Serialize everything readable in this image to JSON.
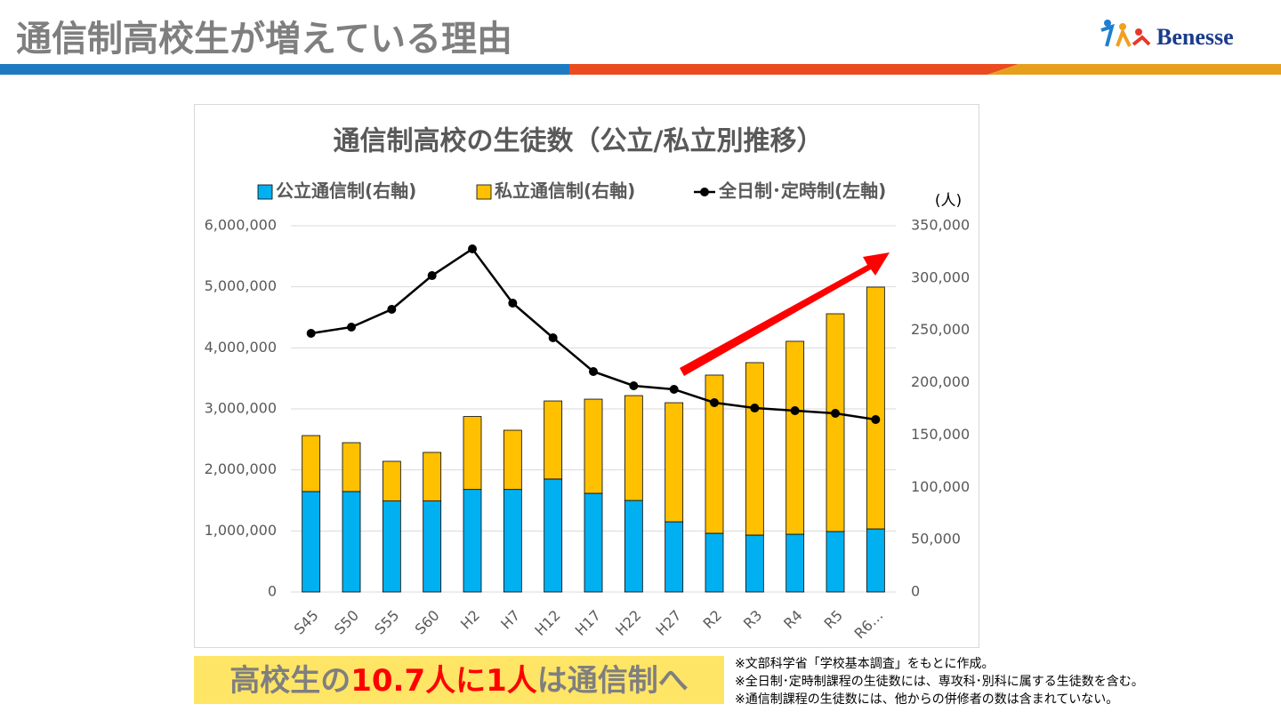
{
  "header": {
    "title": "通信制高校生が増えている理由",
    "logo": "Benesse"
  },
  "chart_data": {
    "type": "bar-line",
    "title": "通信制高校の生徒数（公立/私立別推移）",
    "y2label": "(人)",
    "categories": [
      "S45",
      "S50",
      "S55",
      "S60",
      "H2",
      "H7",
      "H12",
      "H17",
      "H22",
      "H27",
      "R2",
      "R3",
      "R4",
      "R5",
      "R6…"
    ],
    "series": [
      {
        "name": "公立通信制(右軸)",
        "color": "#00b0f0",
        "type": "bar",
        "axis": "y2",
        "values": [
          96000,
          96000,
          87000,
          87000,
          98000,
          98000,
          108000,
          94300,
          87500,
          67100,
          56100,
          54400,
          55200,
          57800,
          60300
        ]
      },
      {
        "name": "私立通信制(右軸)",
        "color": "#ffc000",
        "type": "bar",
        "axis": "y2",
        "values": [
          53500,
          46700,
          37900,
          46400,
          69700,
          56600,
          74600,
          90000,
          100200,
          113800,
          151200,
          164800,
          184400,
          208100,
          231100
        ]
      },
      {
        "name": "全日制･定時制(左軸)",
        "color": "#000000",
        "type": "line",
        "axis": "y",
        "values": [
          4238000,
          4340000,
          4631000,
          5184000,
          5621000,
          4733000,
          4165000,
          3612000,
          3379000,
          3320000,
          3102000,
          3014000,
          2971000,
          2927000,
          2825000
        ]
      }
    ],
    "ylim": [
      0,
      6000000
    ],
    "yticks": [
      0,
      {
        "value": 1000000,
        "label": "1,000,000"
      },
      {
        "value": 2000000,
        "label": "2,000,000"
      },
      {
        "value": 3000000,
        "label": "3,000,000"
      },
      {
        "value": 4000000,
        "label": "4,000,000"
      },
      {
        "value": 5000000,
        "label": "5,000,000"
      },
      {
        "value": 6000000,
        "label": "6,000,000"
      }
    ],
    "y2lim": [
      0,
      350000
    ],
    "y2ticks": [
      0,
      {
        "value": 50000,
        "label": "50,000"
      },
      {
        "value": 100000,
        "label": "100,000"
      },
      {
        "value": 150000,
        "label": "150,000"
      },
      {
        "value": 200000,
        "label": "200,000"
      },
      {
        "value": 250000,
        "label": "250,000"
      },
      {
        "value": 300000,
        "label": "300,000"
      },
      {
        "value": 350000,
        "label": "350,000"
      }
    ],
    "grid": true,
    "stacked": true
  },
  "callout": [
    "高校生の",
    "10.7人に1人",
    "は通信制へ"
  ],
  "notes": [
    "※文部科学省「学校基本調査」をもとに作成。",
    "※全日制･定時制課程の生徒数には、専攻科･別科に属する生徒数を含む。",
    "※通信制課程の生徒数には、他からの併修者の数は含まれていない。"
  ]
}
